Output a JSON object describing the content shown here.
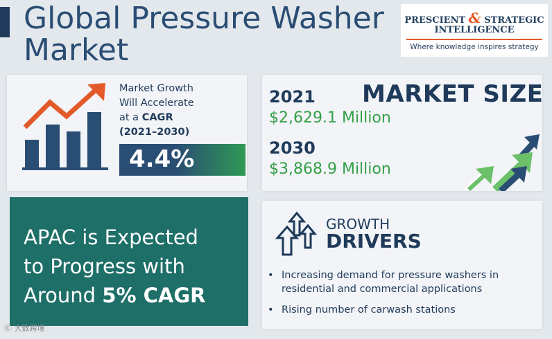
{
  "title": {
    "line1": "Global Pressure Washer",
    "line2": "Market"
  },
  "logo": {
    "line1_a": "PRESCIENT ",
    "amp": "&",
    "line1_b": " STRATEGIC",
    "line2": "INTELLIGENCE",
    "tagline": "Where knowledge inspires strategy"
  },
  "growth": {
    "line1": "Market Growth",
    "line2": "Will Accelerate",
    "line3_a": "at a ",
    "line3_b": "CAGR",
    "line4": "(2021–2030)",
    "cagr": "4.4%"
  },
  "market_size": {
    "title": "MARKET SIZE",
    "year1": "2021",
    "value1": "$2,629.1 Million",
    "year2": "2030",
    "value2": "$3,868.9 Million"
  },
  "apac": {
    "line1": "APAC is Expected",
    "line2": "to Progress with",
    "line3_a": "Around ",
    "line3_b": "5% CAGR"
  },
  "drivers": {
    "heading1": "GROWTH",
    "heading2": "DRIVERS",
    "items": [
      "Increasing demand for pressure washers in residential and commercial applications",
      "Rising number of carwash stations"
    ]
  },
  "watermark": "大数跨境",
  "colors": {
    "navy": "#1f3a5a",
    "green": "#34a048",
    "teal": "#1e6f68",
    "orange": "#e35a2a"
  }
}
